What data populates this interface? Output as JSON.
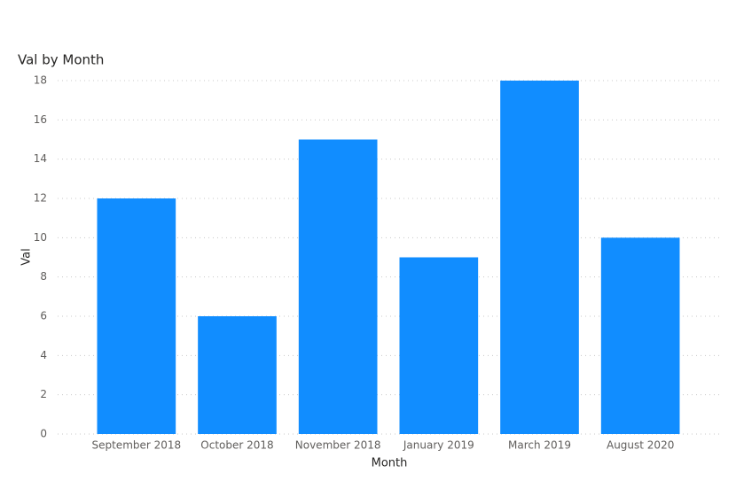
{
  "chart_data": {
    "type": "bar",
    "title": "Val by Month",
    "x_label": "Month",
    "y_label": "Val",
    "categories": [
      "September 2018",
      "October 2018",
      "November 2018",
      "January 2019",
      "March 2019",
      "August 2020"
    ],
    "values": [
      12,
      6,
      15,
      9,
      18,
      10
    ],
    "color": "#118DFF",
    "ylim": [
      0,
      18
    ],
    "yticks": [
      0,
      2,
      4,
      6,
      8,
      10,
      12,
      14,
      16,
      18
    ],
    "grid": true
  }
}
